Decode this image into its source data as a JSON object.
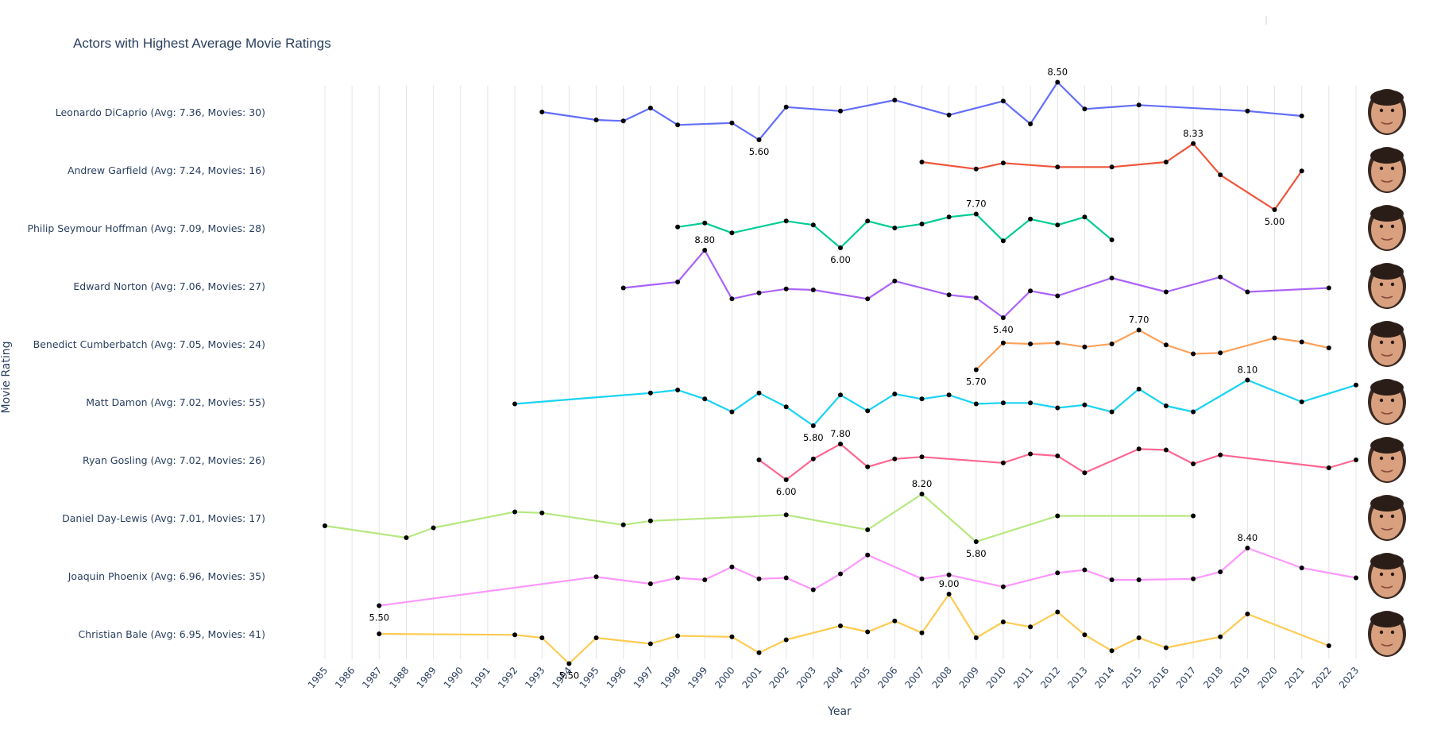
{
  "chart_data": {
    "type": "line",
    "title": "Actors with Highest Average Movie Ratings",
    "xlabel": "Year",
    "ylabel": "Movie Rating",
    "x_range": [
      1985,
      2023
    ],
    "x_ticks": [
      "1985",
      "1986",
      "1987",
      "1988",
      "1989",
      "1990",
      "1991",
      "1992",
      "1993",
      "1994",
      "1995",
      "1996",
      "1997",
      "1998",
      "1999",
      "2000",
      "2001",
      "2002",
      "2003",
      "2004",
      "2005",
      "2006",
      "2007",
      "2008",
      "2009",
      "2010",
      "2011",
      "2012",
      "2013",
      "2014",
      "2015",
      "2016",
      "2017",
      "2018",
      "2019",
      "2020",
      "2021",
      "2022",
      "2023"
    ],
    "grid": true,
    "legend": "none",
    "series": [
      {
        "name": "Leonardo DiCaprio (Avg: 7.36, Movies: 30)",
        "color": "#636efa",
        "icon": "leonardo-dicaprio-photo",
        "points": [
          [
            1993,
            7.0
          ],
          [
            1995,
            6.6
          ],
          [
            1996,
            6.55
          ],
          [
            1997,
            7.2
          ],
          [
            1998,
            6.35
          ],
          [
            2000,
            6.45
          ],
          [
            2001,
            5.6
          ],
          [
            2002,
            7.25
          ],
          [
            2004,
            7.05
          ],
          [
            2006,
            7.6
          ],
          [
            2008,
            6.85
          ],
          [
            2010,
            7.55
          ],
          [
            2011,
            6.4
          ],
          [
            2012,
            8.5
          ],
          [
            2013,
            7.15
          ],
          [
            2015,
            7.35
          ],
          [
            2019,
            7.05
          ],
          [
            2021,
            6.8
          ]
        ],
        "labels": [
          {
            "x": 2001,
            "text": "5.60",
            "pos": "below"
          },
          {
            "x": 2012,
            "text": "8.50",
            "pos": "above"
          }
        ]
      },
      {
        "name": "Andrew Garfield (Avg: 7.24, Movies: 16)",
        "color": "#ef553b",
        "icon": "andrew-garfield-photo",
        "points": [
          [
            2007,
            7.4
          ],
          [
            2009,
            7.05
          ],
          [
            2010,
            7.35
          ],
          [
            2012,
            7.15
          ],
          [
            2014,
            7.15
          ],
          [
            2016,
            7.4
          ],
          [
            2017,
            8.33
          ],
          [
            2018,
            6.75
          ],
          [
            2020,
            5.0
          ],
          [
            2021,
            6.95
          ]
        ],
        "labels": [
          {
            "x": 2017,
            "text": "8.33",
            "pos": "above"
          },
          {
            "x": 2020,
            "text": "5.00",
            "pos": "below"
          }
        ]
      },
      {
        "name": "Philip Seymour Hoffman (Avg: 7.09, Movies: 28)",
        "color": "#00cc96",
        "icon": "philip-seymour-hoffman-photo",
        "points": [
          [
            1998,
            7.05
          ],
          [
            1999,
            7.25
          ],
          [
            2000,
            6.75
          ],
          [
            2002,
            7.35
          ],
          [
            2003,
            7.15
          ],
          [
            2004,
            6.0
          ],
          [
            2005,
            7.35
          ],
          [
            2006,
            7.0
          ],
          [
            2007,
            7.2
          ],
          [
            2008,
            7.55
          ],
          [
            2009,
            7.7
          ],
          [
            2010,
            6.35
          ],
          [
            2011,
            7.45
          ],
          [
            2012,
            7.15
          ],
          [
            2013,
            7.55
          ],
          [
            2014,
            6.4
          ]
        ],
        "labels": [
          {
            "x": 2004,
            "text": "6.00",
            "pos": "below"
          },
          {
            "x": 2009,
            "text": "7.70",
            "pos": "above"
          }
        ]
      },
      {
        "name": "Edward Norton (Avg: 7.06, Movies: 27)",
        "color": "#ab63fa",
        "icon": "edward-norton-photo",
        "points": [
          [
            1996,
            6.9
          ],
          [
            1998,
            7.2
          ],
          [
            1999,
            8.8
          ],
          [
            2000,
            6.35
          ],
          [
            2001,
            6.65
          ],
          [
            2002,
            6.85
          ],
          [
            2003,
            6.8
          ],
          [
            2005,
            6.35
          ],
          [
            2006,
            7.25
          ],
          [
            2008,
            6.55
          ],
          [
            2009,
            6.4
          ],
          [
            2010,
            5.4
          ],
          [
            2011,
            6.75
          ],
          [
            2012,
            6.5
          ],
          [
            2014,
            7.4
          ],
          [
            2016,
            6.7
          ],
          [
            2018,
            7.45
          ],
          [
            2019,
            6.7
          ],
          [
            2022,
            6.9
          ]
        ],
        "labels": [
          {
            "x": 1999,
            "text": "8.80",
            "pos": "above"
          },
          {
            "x": 2010,
            "text": "5.40",
            "pos": "below"
          }
        ]
      },
      {
        "name": "Benedict Cumberbatch (Avg: 7.05, Movies: 24)",
        "color": "#ffa15a",
        "icon": "benedict-cumberbatch-photo",
        "points": [
          [
            2009,
            5.7
          ],
          [
            2010,
            7.05
          ],
          [
            2011,
            7.0
          ],
          [
            2012,
            7.05
          ],
          [
            2013,
            6.85
          ],
          [
            2014,
            7.0
          ],
          [
            2015,
            7.7
          ],
          [
            2016,
            6.95
          ],
          [
            2017,
            6.5
          ],
          [
            2018,
            6.55
          ],
          [
            2020,
            7.3
          ],
          [
            2021,
            7.1
          ],
          [
            2022,
            6.8
          ]
        ],
        "labels": [
          {
            "x": 2009,
            "text": "5.70",
            "pos": "below"
          },
          {
            "x": 2015,
            "text": "7.70",
            "pos": "above"
          }
        ]
      },
      {
        "name": "Matt Damon (Avg: 7.02, Movies: 55)",
        "color": "#19d3f3",
        "icon": "matt-damon-photo",
        "points": [
          [
            1992,
            6.9
          ],
          [
            1997,
            7.45
          ],
          [
            1998,
            7.6
          ],
          [
            1999,
            7.15
          ],
          [
            2000,
            6.5
          ],
          [
            2001,
            7.45
          ],
          [
            2002,
            6.75
          ],
          [
            2003,
            5.8
          ],
          [
            2004,
            7.35
          ],
          [
            2005,
            6.55
          ],
          [
            2006,
            7.4
          ],
          [
            2007,
            7.15
          ],
          [
            2008,
            7.35
          ],
          [
            2009,
            6.9
          ],
          [
            2010,
            6.95
          ],
          [
            2011,
            6.95
          ],
          [
            2012,
            6.7
          ],
          [
            2013,
            6.85
          ],
          [
            2014,
            6.5
          ],
          [
            2015,
            7.65
          ],
          [
            2016,
            6.8
          ],
          [
            2017,
            6.5
          ],
          [
            2019,
            8.1
          ],
          [
            2021,
            7.0
          ],
          [
            2023,
            7.85
          ]
        ],
        "labels": [
          {
            "x": 2003,
            "text": "5.80",
            "pos": "below"
          },
          {
            "x": 2019,
            "text": "8.10",
            "pos": "above"
          }
        ]
      },
      {
        "name": "Ryan Gosling (Avg: 7.02, Movies: 26)",
        "color": "#ff6692",
        "icon": "ryan-gosling-photo",
        "points": [
          [
            2001,
            7.0
          ],
          [
            2002,
            6.0
          ],
          [
            2003,
            7.05
          ],
          [
            2004,
            7.8
          ],
          [
            2005,
            6.65
          ],
          [
            2006,
            7.05
          ],
          [
            2007,
            7.15
          ],
          [
            2010,
            6.85
          ],
          [
            2011,
            7.3
          ],
          [
            2012,
            7.2
          ],
          [
            2013,
            6.35
          ],
          [
            2015,
            7.55
          ],
          [
            2016,
            7.5
          ],
          [
            2017,
            6.8
          ],
          [
            2018,
            7.25
          ],
          [
            2022,
            6.6
          ],
          [
            2023,
            7.0
          ]
        ],
        "labels": [
          {
            "x": 2002,
            "text": "6.00",
            "pos": "below"
          },
          {
            "x": 2004,
            "text": "7.80",
            "pos": "above"
          }
        ]
      },
      {
        "name": "Daniel Day-Lewis (Avg: 7.01, Movies: 17)",
        "color": "#b6e880",
        "icon": "daniel-day-lewis-photo",
        "points": [
          [
            1985,
            6.6
          ],
          [
            1988,
            6.0
          ],
          [
            1989,
            6.5
          ],
          [
            1992,
            7.3
          ],
          [
            1993,
            7.25
          ],
          [
            1996,
            6.65
          ],
          [
            1997,
            6.85
          ],
          [
            2002,
            7.15
          ],
          [
            2005,
            6.4
          ],
          [
            2007,
            8.2
          ],
          [
            2009,
            5.8
          ],
          [
            2012,
            7.1
          ],
          [
            2017,
            7.1
          ]
        ],
        "labels": [
          {
            "x": 2007,
            "text": "8.20",
            "pos": "above"
          },
          {
            "x": 2009,
            "text": "5.80",
            "pos": "below"
          }
        ]
      },
      {
        "name": "Joaquin Phoenix (Avg: 6.96, Movies: 35)",
        "color": "#ff97ff",
        "icon": "joaquin-phoenix-photo",
        "points": [
          [
            1987,
            5.5
          ],
          [
            1995,
            6.95
          ],
          [
            1997,
            6.6
          ],
          [
            1998,
            6.9
          ],
          [
            1999,
            6.8
          ],
          [
            2000,
            7.45
          ],
          [
            2001,
            6.85
          ],
          [
            2002,
            6.9
          ],
          [
            2003,
            6.3
          ],
          [
            2004,
            7.1
          ],
          [
            2005,
            8.05
          ],
          [
            2007,
            6.85
          ],
          [
            2008,
            7.05
          ],
          [
            2010,
            6.45
          ],
          [
            2012,
            7.15
          ],
          [
            2013,
            7.3
          ],
          [
            2014,
            6.8
          ],
          [
            2015,
            6.8
          ],
          [
            2017,
            6.85
          ],
          [
            2018,
            7.2
          ],
          [
            2019,
            8.4
          ],
          [
            2021,
            7.4
          ],
          [
            2023,
            6.9
          ]
        ],
        "labels": [
          {
            "x": 1987,
            "text": "5.50",
            "pos": "below"
          },
          {
            "x": 2019,
            "text": "8.40",
            "pos": "above"
          }
        ]
      },
      {
        "name": "Christian Bale (Avg: 6.95, Movies: 41)",
        "color": "#fecb52",
        "icon": "christian-bale-photo",
        "points": [
          [
            1987,
            7.0
          ],
          [
            1992,
            6.95
          ],
          [
            1993,
            6.8
          ],
          [
            1994,
            5.5
          ],
          [
            1995,
            6.8
          ],
          [
            1997,
            6.5
          ],
          [
            1998,
            6.9
          ],
          [
            2000,
            6.85
          ],
          [
            2001,
            6.05
          ],
          [
            2002,
            6.7
          ],
          [
            2004,
            7.4
          ],
          [
            2005,
            7.1
          ],
          [
            2006,
            7.65
          ],
          [
            2007,
            7.05
          ],
          [
            2008,
            9.0
          ],
          [
            2009,
            6.8
          ],
          [
            2010,
            7.6
          ],
          [
            2011,
            7.35
          ],
          [
            2012,
            8.1
          ],
          [
            2013,
            6.95
          ],
          [
            2014,
            6.15
          ],
          [
            2015,
            6.8
          ],
          [
            2016,
            6.3
          ],
          [
            2018,
            6.85
          ],
          [
            2019,
            8.0
          ],
          [
            2022,
            6.4
          ]
        ],
        "labels": [
          {
            "x": 1994,
            "text": "5.50",
            "pos": "below"
          },
          {
            "x": 2008,
            "text": "9.00",
            "pos": "above"
          }
        ]
      }
    ]
  }
}
